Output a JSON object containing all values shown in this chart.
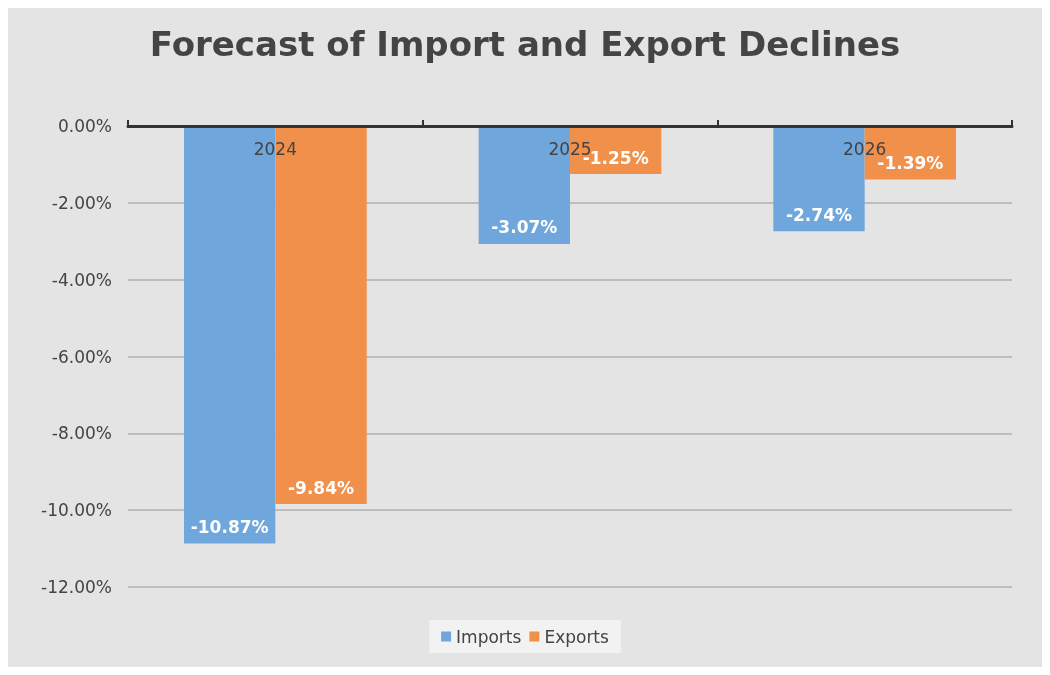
{
  "chart_data": {
    "type": "bar",
    "title": "Forecast of Import and Export Declines",
    "categories": [
      "2024",
      "2025",
      "2026"
    ],
    "series": [
      {
        "name": "Imports",
        "color": "#6fa6dc",
        "values": [
          -10.87,
          -3.07,
          -2.74
        ],
        "value_labels": [
          "-10.87%",
          "-3.07%",
          "-2.74%"
        ]
      },
      {
        "name": "Exports",
        "color": "#f0904a",
        "values": [
          -9.84,
          -1.25,
          -1.39
        ],
        "value_labels": [
          "-9.84%",
          "-1.25%",
          "-1.39%"
        ]
      }
    ],
    "ylim": [
      -12,
      0
    ],
    "yticks": [
      {
        "value": 0,
        "label": "0.00%"
      },
      {
        "value": -2,
        "label": "-2.00%"
      },
      {
        "value": -4,
        "label": "-4.00%"
      },
      {
        "value": -6,
        "label": "-6.00%"
      },
      {
        "value": -8,
        "label": "-8.00%"
      },
      {
        "value": -10,
        "label": "-10.00%"
      },
      {
        "value": -12,
        "label": "-12.00%"
      }
    ],
    "grid": "y",
    "legend": "bottom"
  }
}
